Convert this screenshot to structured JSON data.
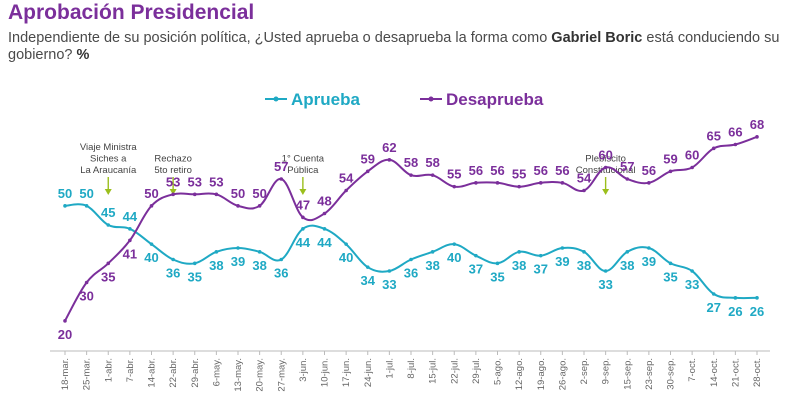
{
  "header": {
    "title": "Aprobación Presidencial",
    "subtitle_pre": "Independiente de su posición política, ¿Usted aprueba o desaprueba la forma como ",
    "subtitle_bold": "Gabriel Boric",
    "subtitle_mid": " está conduciendo su gobierno? ",
    "subtitle_unit": "%"
  },
  "chart_data": {
    "type": "line",
    "categories": [
      "18-mar.",
      "25-mar.",
      "1-abr.",
      "7-abr.",
      "14-abr.",
      "22-abr.",
      "29-abr.",
      "6-may.",
      "13-may.",
      "20-may.",
      "27-may.",
      "3-jun.",
      "10-jun.",
      "17-jun.",
      "24-jun.",
      "1-jul.",
      "8-jul.",
      "15-jul.",
      "22-jul.",
      "29-jul.",
      "5-ago.",
      "12-ago.",
      "19-ago.",
      "26-ago.",
      "2-sep.",
      "9-sep.",
      "15-sep.",
      "23-sep.",
      "30-sep.",
      "7-oct.",
      "14-oct.",
      "21-oct.",
      "28-oct."
    ],
    "series": [
      {
        "name": "Aprueba",
        "color": "#1fa9c4",
        "values": [
          50,
          50,
          45,
          44,
          40,
          36,
          35,
          38,
          39,
          38,
          36,
          44,
          44,
          40,
          34,
          33,
          36,
          38,
          40,
          37,
          35,
          38,
          37,
          39,
          38,
          33,
          38,
          39,
          35,
          33,
          27,
          26,
          26
        ]
      },
      {
        "name": "Desaprueba",
        "color": "#7b2f9b",
        "values": [
          20,
          30,
          35,
          41,
          50,
          53,
          53,
          53,
          50,
          50,
          57,
          47,
          48,
          54,
          59,
          62,
          58,
          58,
          55,
          56,
          56,
          55,
          56,
          56,
          54,
          60,
          57,
          56,
          59,
          60,
          65,
          66,
          68
        ]
      }
    ],
    "ylim": [
      15,
      75
    ],
    "legend_position": "top-center",
    "annotations": [
      {
        "category_index": 2,
        "lines": [
          "Viaje Ministra",
          "Siches a",
          "La Araucanía"
        ]
      },
      {
        "category_index": 5,
        "lines": [
          "Rechazo",
          "5to retiro"
        ]
      },
      {
        "category_index": 11,
        "lines": [
          "1° Cuenta",
          "Pública"
        ]
      },
      {
        "category_index": 25,
        "lines": [
          "Plebiscito",
          "Constitucional"
        ]
      }
    ]
  }
}
